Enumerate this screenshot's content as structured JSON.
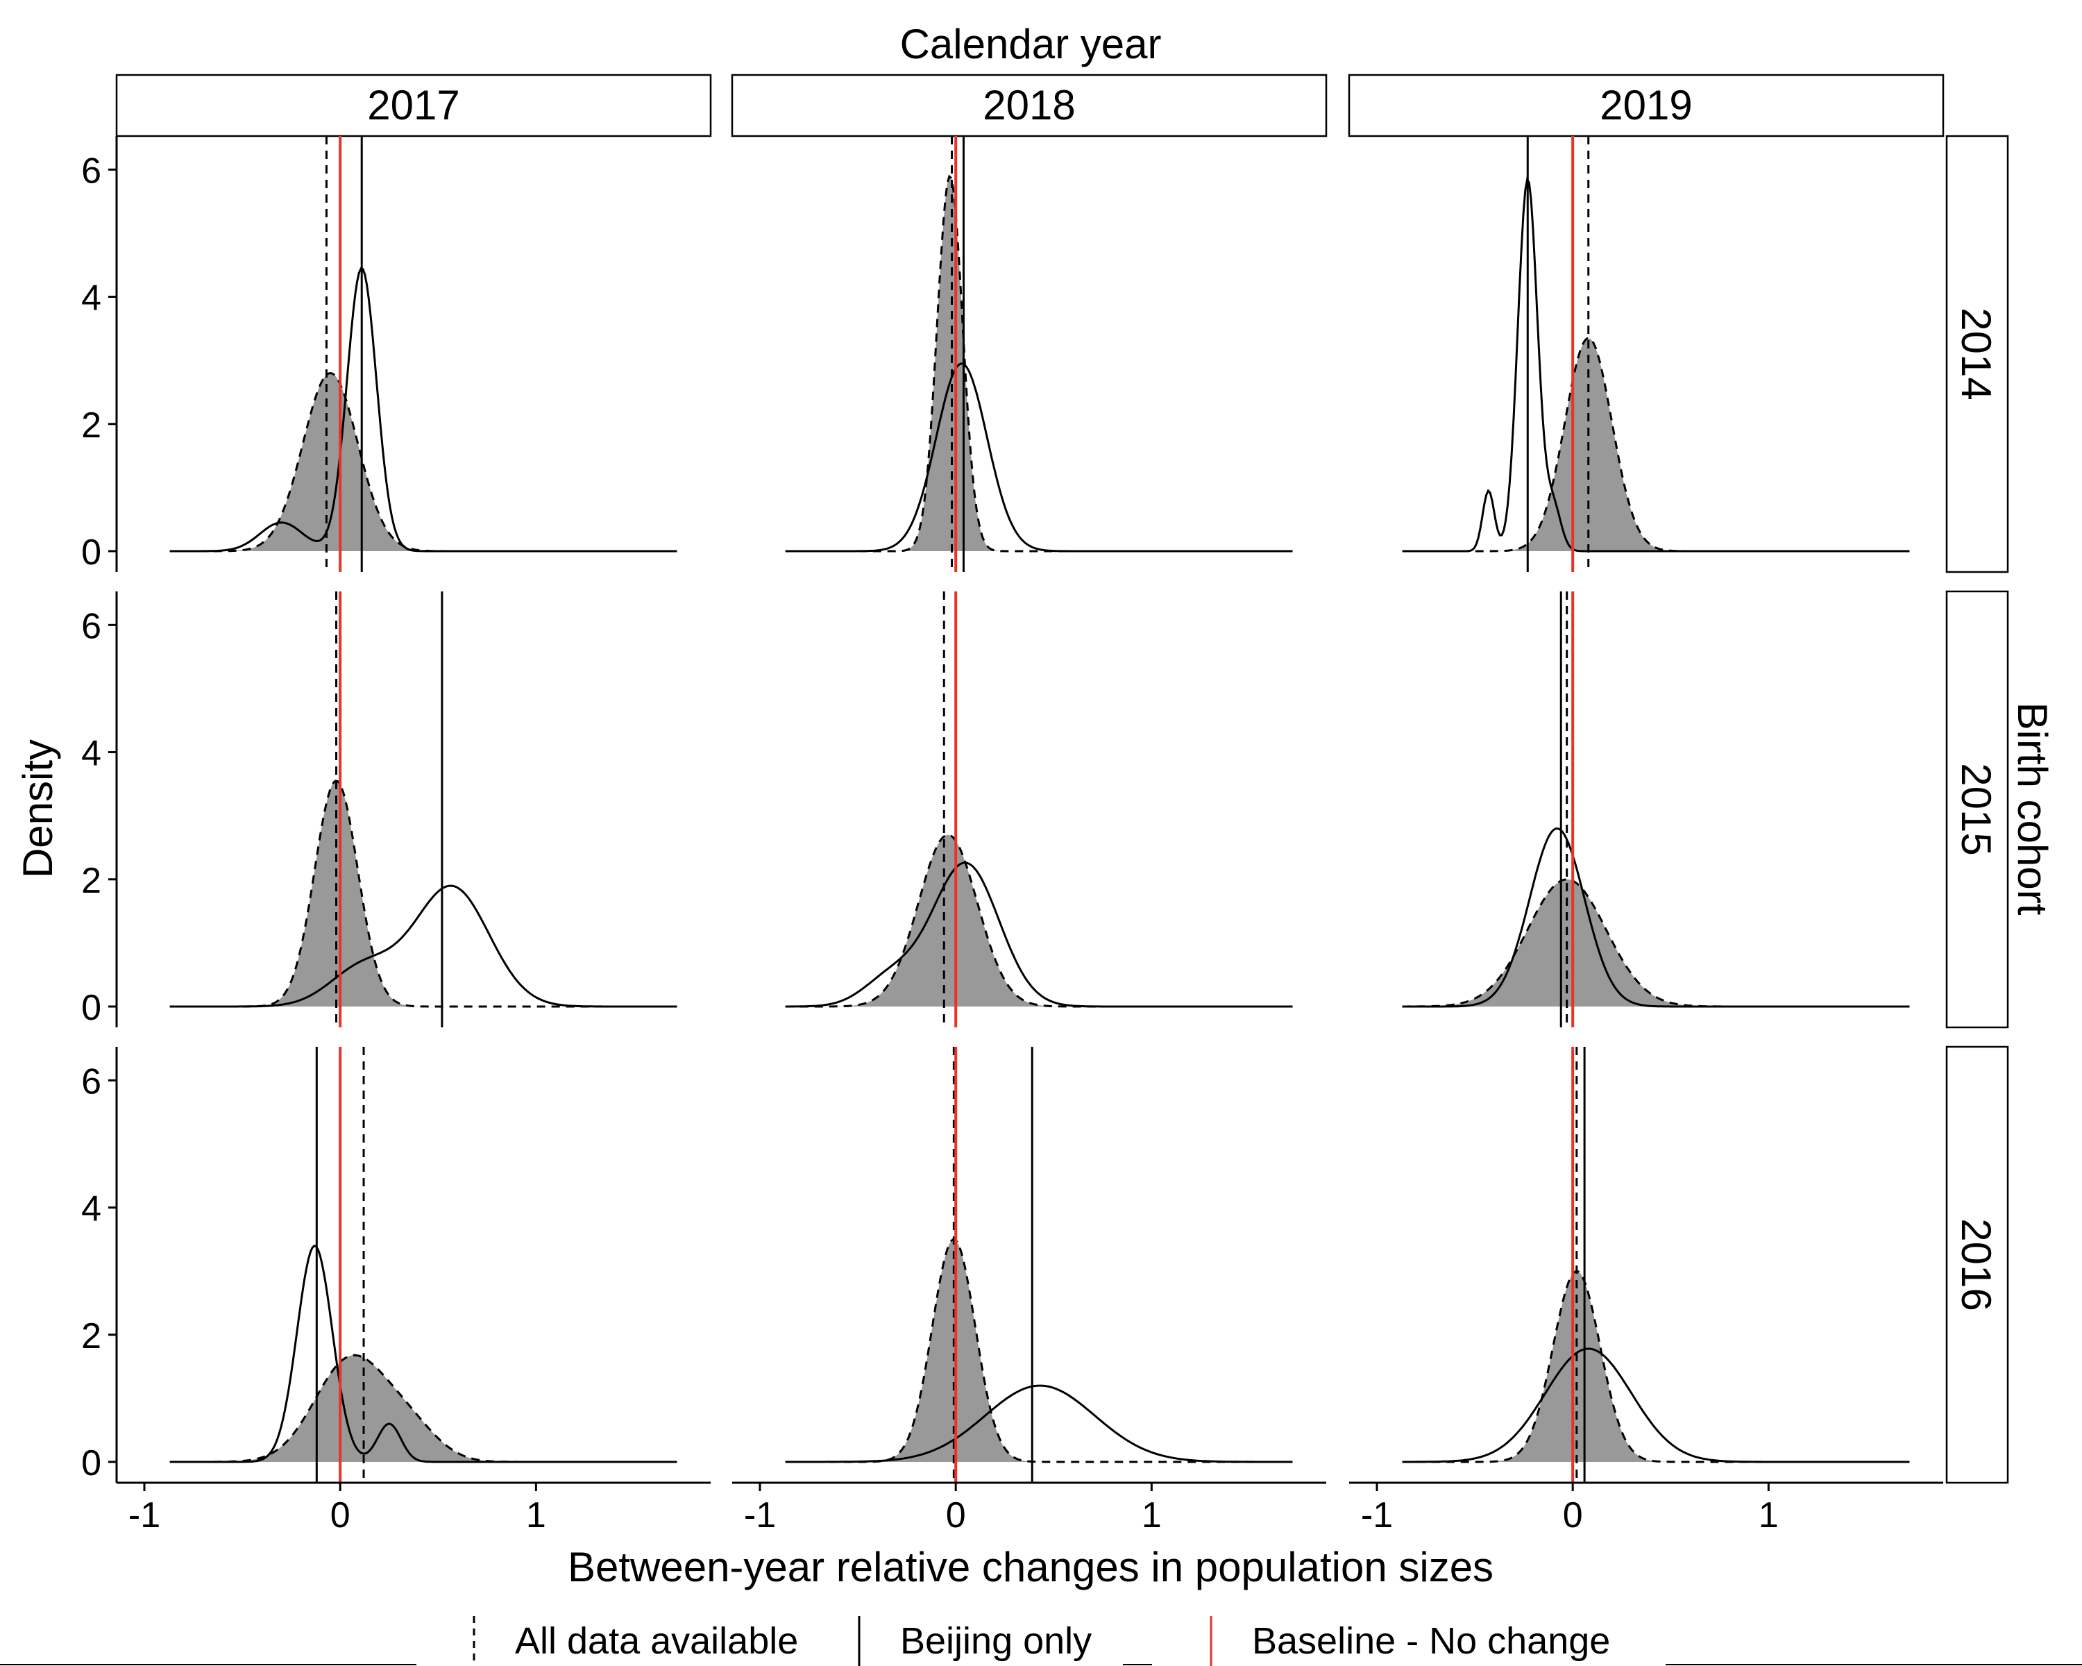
{
  "figure": {
    "top_title": "Calendar year",
    "right_title": "Birth cohort",
    "xlabel": "Between-year relative changes in population sizes",
    "ylabel": "Density"
  },
  "legend": {
    "items": [
      {
        "label": "All data available",
        "style": "dashed",
        "color": "#000000"
      },
      {
        "label": "Beijing only",
        "style": "solid",
        "color": "#000000"
      },
      {
        "label": "Baseline - No change",
        "style": "solid",
        "color": "#e8332a"
      }
    ]
  },
  "colors": {
    "fill": "#999999",
    "baseline": "#e8332a",
    "line": "#000000"
  },
  "chart_data": {
    "type": "density",
    "col_facets": [
      "2017",
      "2018",
      "2019"
    ],
    "row_facets": [
      "2014",
      "2015",
      "2016"
    ],
    "xlim": [
      -1,
      1.75
    ],
    "ylim": [
      0,
      6.2
    ],
    "x_ticks": [
      -1,
      0,
      1
    ],
    "x_tick_labels": [
      "-1",
      "0",
      "1"
    ],
    "y_ticks": [
      0,
      2,
      4,
      6
    ],
    "y_tick_labels": [
      "0",
      "2",
      "4",
      "6"
    ],
    "baseline_x": 0,
    "grid": false,
    "legend_position": "bottom",
    "panels": [
      {
        "row": "2014",
        "col": "2017",
        "all": {
          "components": [
            {
              "mu": -0.05,
              "sd": 0.14,
              "h": 2.8
            }
          ],
          "mean_line": -0.07
        },
        "beijing": {
          "components": [
            {
              "mu": 0.11,
              "sd": 0.075,
              "h": 4.45
            },
            {
              "mu": -0.3,
              "sd": 0.11,
              "h": 0.45
            }
          ],
          "mean_line": 0.11
        }
      },
      {
        "row": "2014",
        "col": "2018",
        "all": {
          "components": [
            {
              "mu": -0.03,
              "sd": 0.065,
              "h": 5.9
            }
          ],
          "mean_line": -0.02
        },
        "beijing": {
          "components": [
            {
              "mu": 0.03,
              "sd": 0.13,
              "h": 2.95
            }
          ],
          "mean_line": 0.04
        }
      },
      {
        "row": "2014",
        "col": "2019",
        "all": {
          "components": [
            {
              "mu": 0.08,
              "sd": 0.12,
              "h": 3.35
            }
          ],
          "mean_line": 0.08
        },
        "beijing": {
          "components": [
            {
              "mu": -0.23,
              "sd": 0.05,
              "h": 5.85
            },
            {
              "mu": -0.43,
              "sd": 0.03,
              "h": 0.95
            },
            {
              "mu": -0.1,
              "sd": 0.04,
              "h": 0.7
            }
          ],
          "mean_line": -0.23
        }
      },
      {
        "row": "2015",
        "col": "2017",
        "all": {
          "components": [
            {
              "mu": -0.02,
              "sd": 0.11,
              "h": 3.55
            }
          ],
          "mean_line": -0.02
        },
        "beijing": {
          "components": [
            {
              "mu": 0.57,
              "sd": 0.19,
              "h": 1.88
            },
            {
              "mu": 0.12,
              "sd": 0.17,
              "h": 0.62
            }
          ],
          "mean_line": 0.52
        }
      },
      {
        "row": "2015",
        "col": "2018",
        "all": {
          "components": [
            {
              "mu": -0.04,
              "sd": 0.15,
              "h": 2.7
            }
          ],
          "mean_line": -0.06
        },
        "beijing": {
          "components": [
            {
              "mu": 0.05,
              "sd": 0.17,
              "h": 2.25
            },
            {
              "mu": -0.33,
              "sd": 0.14,
              "h": 0.45
            }
          ],
          "mean_line": 0.0
        }
      },
      {
        "row": "2015",
        "col": "2019",
        "all": {
          "components": [
            {
              "mu": -0.03,
              "sd": 0.2,
              "h": 2.0
            }
          ],
          "mean_line": -0.03
        },
        "beijing": {
          "components": [
            {
              "mu": -0.08,
              "sd": 0.14,
              "h": 2.8
            }
          ],
          "mean_line": -0.06
        }
      },
      {
        "row": "2016",
        "col": "2017",
        "all": {
          "components": [
            {
              "mu": 0.05,
              "sd": 0.18,
              "h": 1.6
            },
            {
              "mu": 0.35,
              "sd": 0.15,
              "h": 0.5
            }
          ],
          "mean_line": 0.12
        },
        "beijing": {
          "components": [
            {
              "mu": -0.13,
              "sd": 0.09,
              "h": 3.4
            },
            {
              "mu": 0.25,
              "sd": 0.06,
              "h": 0.6
            }
          ],
          "mean_line": -0.12
        }
      },
      {
        "row": "2016",
        "col": "2018",
        "all": {
          "components": [
            {
              "mu": -0.01,
              "sd": 0.11,
              "h": 3.5
            }
          ],
          "mean_line": -0.01
        },
        "beijing": {
          "components": [
            {
              "mu": 0.43,
              "sd": 0.28,
              "h": 1.2
            }
          ],
          "mean_line": 0.39
        }
      },
      {
        "row": "2016",
        "col": "2019",
        "all": {
          "components": [
            {
              "mu": 0.02,
              "sd": 0.12,
              "h": 3.0
            }
          ],
          "mean_line": 0.02
        },
        "beijing": {
          "components": [
            {
              "mu": 0.08,
              "sd": 0.22,
              "h": 1.78
            }
          ],
          "mean_line": 0.06
        }
      }
    ]
  }
}
